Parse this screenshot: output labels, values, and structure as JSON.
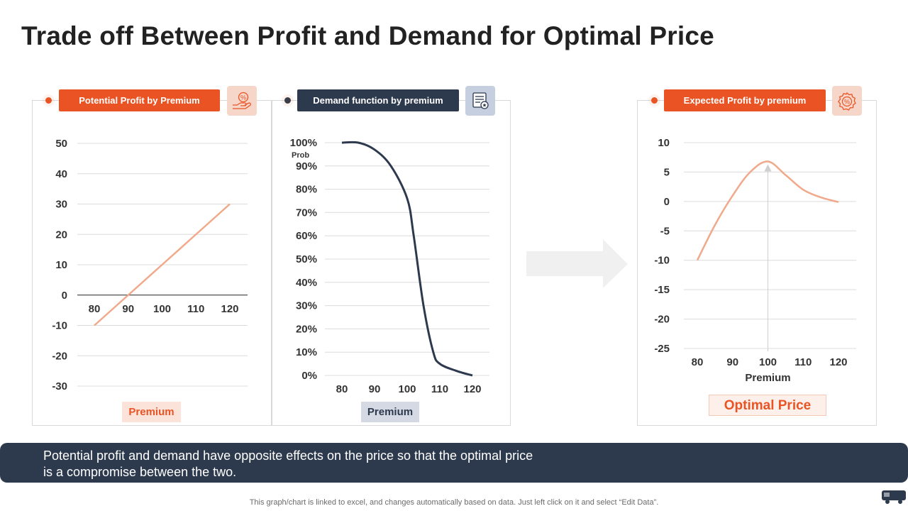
{
  "title": "Trade off Between Profit and Demand for Optimal Price",
  "colors": {
    "accent": "#ea5424",
    "navy": "#2d3a4e",
    "line_orange": "#f0a98a"
  },
  "panels": {
    "profit": {
      "badge": "Potential Profit by Premium",
      "icon": "hand-percent-icon",
      "xlabel": "Premium"
    },
    "demand": {
      "badge": "Demand function by premium",
      "icon": "document-badge-icon",
      "xlabel": "Premium",
      "ylabel": "Prob"
    },
    "expected": {
      "badge": "Expected Profit by premium",
      "icon": "percent-badge-icon",
      "xlabel": "Premium",
      "callout": "Optimal Price"
    }
  },
  "chart_data": [
    {
      "type": "line",
      "title": "Potential Profit by Premium",
      "x": [
        80,
        90,
        100,
        110,
        120
      ],
      "values": [
        -10,
        0,
        10,
        20,
        30
      ],
      "xlabel": "Premium",
      "ylabel": "",
      "ylim": [
        -30,
        50
      ],
      "yticks": [
        50,
        40,
        30,
        20,
        10,
        0,
        -10,
        -20,
        -30
      ],
      "xtick_labels": [
        "80",
        "90",
        "100",
        "110",
        "120"
      ],
      "grid": true
    },
    {
      "type": "line",
      "title": "Demand function by premium",
      "x": [
        80,
        85,
        90,
        95,
        100,
        102,
        105,
        108,
        110,
        115,
        120
      ],
      "values": [
        100,
        100,
        97,
        90,
        76,
        60,
        30,
        10,
        5,
        2,
        0
      ],
      "xlabel": "Premium",
      "ylabel": "Prob",
      "ylim": [
        0,
        100
      ],
      "ytick_labels": [
        "100%",
        "90%",
        "80%",
        "70%",
        "60%",
        "50%",
        "40%",
        "30%",
        "20%",
        "10%",
        "0%"
      ],
      "xtick_labels": [
        "80",
        "90",
        "100",
        "110",
        "120"
      ],
      "grid": true
    },
    {
      "type": "line",
      "title": "Expected Profit by premium",
      "x": [
        80,
        85,
        90,
        95,
        100,
        105,
        110,
        115,
        120
      ],
      "values": [
        -10,
        -4,
        1,
        5,
        6.8,
        4.5,
        2,
        0.7,
        -0.1
      ],
      "xlabel": "Premium",
      "ylabel": "",
      "ylim": [
        -25,
        10
      ],
      "yticks": [
        10,
        5,
        0,
        -5,
        -10,
        -15,
        -20,
        -25
      ],
      "xtick_labels": [
        "80",
        "90",
        "100",
        "110",
        "120"
      ],
      "optimal_x": 100,
      "grid": true
    }
  ],
  "footer": {
    "text": "Potential profit and demand have opposite effects on the price so that the optimal price is a compromise between the two.",
    "note": "This graph/chart is linked to excel,  and changes automatically based on data. Just left click on it and select “Edit Data”."
  }
}
